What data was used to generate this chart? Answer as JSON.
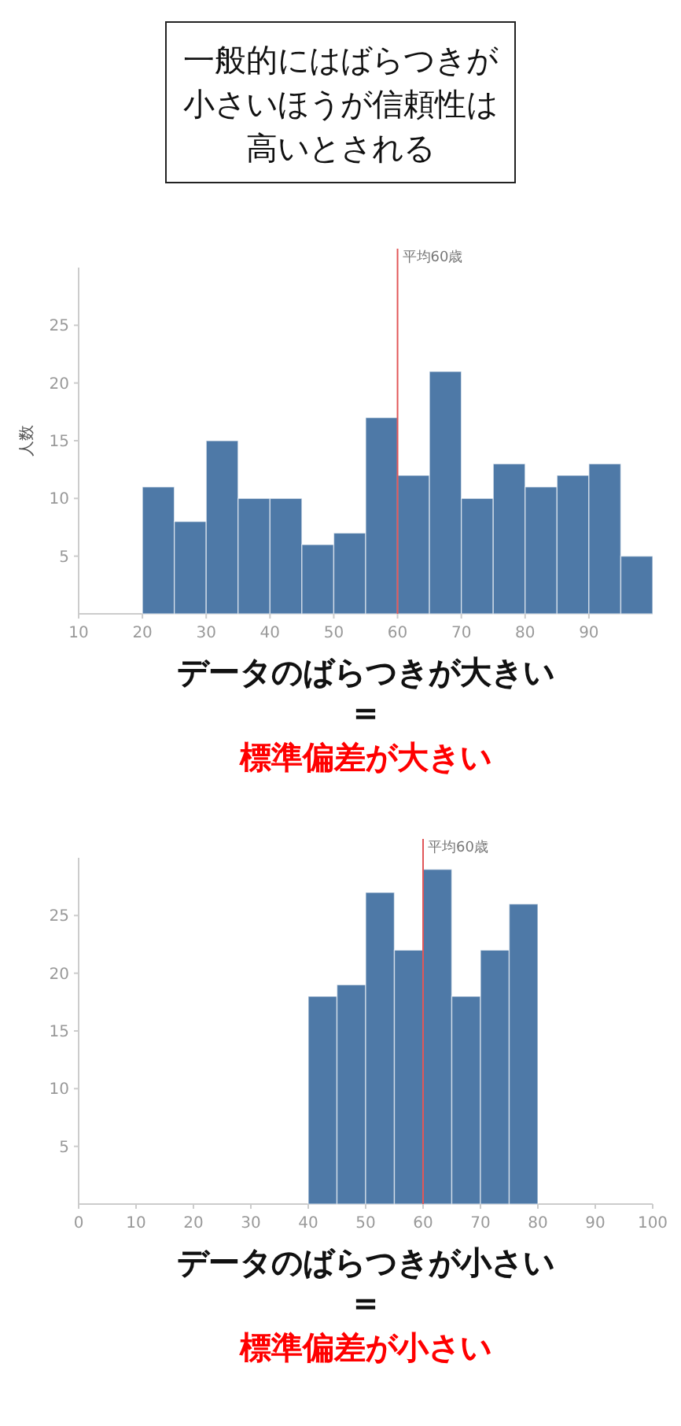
{
  "chart_data": [
    {
      "type": "histogram",
      "bins": [
        20,
        25,
        30,
        35,
        40,
        45,
        50,
        55,
        60,
        65,
        70,
        75,
        80,
        85,
        90,
        95,
        100
      ],
      "values": [
        11,
        8,
        15,
        10,
        10,
        6,
        7,
        17,
        12,
        21,
        10,
        13,
        11,
        12,
        13,
        5
      ],
      "color": "#4e79a7",
      "xlim": [
        10,
        100
      ],
      "xticks": [
        10,
        20,
        30,
        40,
        50,
        60,
        70,
        80,
        90
      ],
      "ylim": [
        0,
        30
      ],
      "yticks": [
        5,
        10,
        15,
        20,
        25
      ],
      "ylabel": "人数",
      "ref_lines": [
        {
          "axis": "x",
          "value": 60,
          "label": "平均60歳",
          "color": "#e15759"
        }
      ],
      "annotations": [
        "データのばらつきが大きい",
        "＝",
        "標準偏差が大きい"
      ]
    },
    {
      "type": "histogram",
      "bins": [
        40,
        45,
        50,
        55,
        60,
        65,
        70,
        75,
        80
      ],
      "values": [
        18,
        19,
        27,
        22,
        29,
        18,
        22,
        26
      ],
      "color": "#4e79a7",
      "xlim": [
        0,
        100
      ],
      "xticks": [
        0,
        10,
        20,
        30,
        40,
        50,
        60,
        70,
        80,
        90,
        100
      ],
      "ylim": [
        0,
        30
      ],
      "yticks": [
        5,
        10,
        15,
        20,
        25
      ],
      "ref_lines": [
        {
          "axis": "x",
          "value": 60,
          "label": "平均60歳",
          "color": "#e15759"
        }
      ],
      "annotations": [
        "データのばらつきが小さい",
        "＝",
        "標準偏差が小さい",
        "一般的にはばらつきが小さいほうが信頼性は高いとされる"
      ]
    }
  ]
}
